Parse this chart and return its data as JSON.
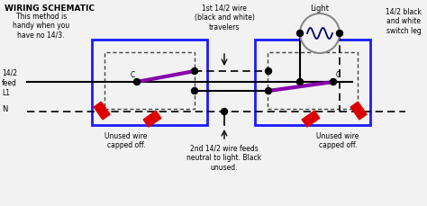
{
  "bg_color": "#f2f2f2",
  "title_text": "WIRING SCHEMATIC",
  "subtitle_text": "This method is\nhandy when you\nhave no 14/3.",
  "light_label": "Light",
  "switch_leg_label": "14/2 black\nand white\nswitch leg",
  "travelers_label": "1st 14/2 wire\n(black and white)\ntravelers",
  "feed_label": "14/2\nfeed\nL1",
  "neutral_label": "N",
  "bottom_left_label": "Unused wire\ncapped off.",
  "bottom_mid_label": "2nd 14/2 wire feeds\nneutral to light. Black\nunused.",
  "bottom_right_label": "Unused wire\ncapped off.",
  "blue_box_color": "#1a1aff",
  "dotted_box_color": "#555555",
  "wire_black": "#000000",
  "wire_purple": "#8800aa",
  "cap_color": "#dd0000",
  "node_color": "#000000",
  "light_circle_color": "#999999",
  "light_wire_color": "#000066"
}
